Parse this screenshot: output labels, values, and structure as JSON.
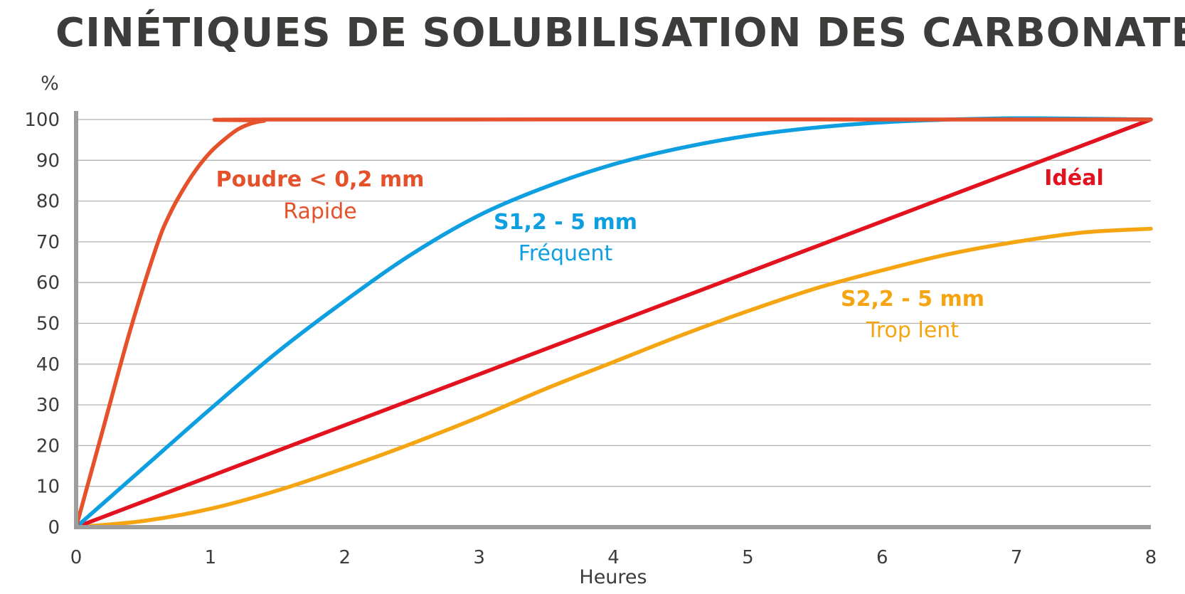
{
  "title": "CINÉTIQUES DE SOLUBILISATION DES CARBONATES",
  "chart_data": {
    "type": "line",
    "title": "CINÉTIQUES DE SOLUBILISATION DES CARBONATES",
    "xlabel": "Heures",
    "ylabel": "%",
    "xlim": [
      0,
      8
    ],
    "ylim": [
      0,
      100
    ],
    "x_ticks": [
      "0",
      "1",
      "2",
      "3",
      "4",
      "5",
      "6",
      "7",
      "8"
    ],
    "y_ticks": [
      "0",
      "10",
      "20",
      "30",
      "40",
      "50",
      "60",
      "70",
      "80",
      "90",
      "100"
    ],
    "grid": "horizontal",
    "colors": {
      "axis": "#9d9d9c",
      "grid": "#b2b2b2",
      "text": "#3c3c3b"
    },
    "series": [
      {
        "key": "poudre",
        "label_bold": "Poudre < 0,2 mm",
        "label_sub": "Rapide",
        "color": "#e5512a",
        "points": [
          [
            0,
            0
          ],
          [
            0.2,
            24
          ],
          [
            0.4,
            48
          ],
          [
            0.6,
            69
          ],
          [
            0.7,
            77
          ],
          [
            0.8,
            83
          ],
          [
            0.9,
            88
          ],
          [
            1.0,
            92
          ],
          [
            1.1,
            95
          ],
          [
            1.2,
            97.5
          ],
          [
            1.3,
            99
          ],
          [
            1.4,
            99.7
          ],
          [
            1.55,
            100
          ],
          [
            8,
            100
          ]
        ]
      },
      {
        "key": "s12",
        "label_bold": "S1,2 - 5 mm",
        "label_sub": "Fréquent",
        "color": "#0e9fe0",
        "points": [
          [
            0,
            0
          ],
          [
            0.5,
            14.5
          ],
          [
            1,
            29
          ],
          [
            1.5,
            43
          ],
          [
            2,
            55.5
          ],
          [
            2.5,
            67
          ],
          [
            3,
            76.5
          ],
          [
            3.5,
            83.5
          ],
          [
            4,
            89
          ],
          [
            4.5,
            93
          ],
          [
            5,
            96
          ],
          [
            5.5,
            98
          ],
          [
            6,
            99.3
          ],
          [
            6.5,
            100
          ],
          [
            7,
            100.3
          ],
          [
            7.5,
            100.2
          ],
          [
            8,
            100
          ]
        ]
      },
      {
        "key": "ideal",
        "label_bold": "Idéal",
        "label_sub": "",
        "color": "#e2121f",
        "points": [
          [
            0,
            0
          ],
          [
            8,
            100
          ]
        ]
      },
      {
        "key": "s22",
        "label_bold": "S2,2 - 5 mm",
        "label_sub": "Trop lent",
        "color": "#f5a511",
        "points": [
          [
            0,
            0
          ],
          [
            0.5,
            1.5
          ],
          [
            1,
            4.5
          ],
          [
            1.5,
            9
          ],
          [
            2,
            14.5
          ],
          [
            2.5,
            20.5
          ],
          [
            3,
            27
          ],
          [
            3.5,
            34
          ],
          [
            4,
            40.5
          ],
          [
            4.5,
            47
          ],
          [
            5,
            53
          ],
          [
            5.5,
            58.5
          ],
          [
            6,
            63
          ],
          [
            6.5,
            67
          ],
          [
            7,
            70
          ],
          [
            7.5,
            72.3
          ],
          [
            8,
            73.2
          ]
        ]
      }
    ]
  }
}
